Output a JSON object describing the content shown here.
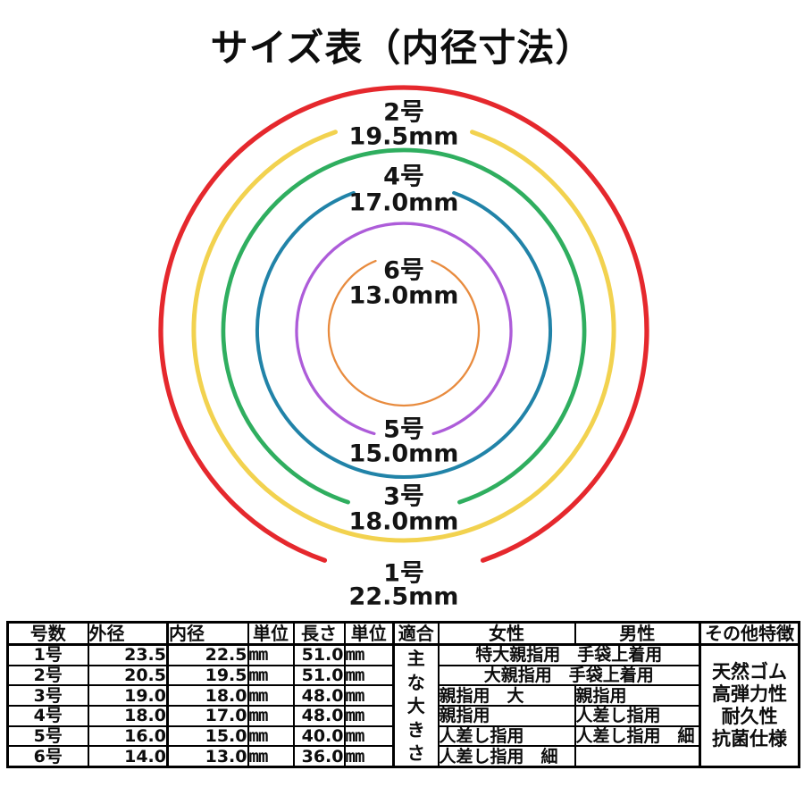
{
  "title": "サイズ表（内径寸法）",
  "diagram": {
    "rings": [
      {
        "name": "1号",
        "size_label": "22.5mm",
        "inner_diameter_mm": 22.5,
        "color": "#e5282d"
      },
      {
        "name": "2号",
        "size_label": "19.5mm",
        "inner_diameter_mm": 19.5,
        "color": "#f2d24f"
      },
      {
        "name": "3号",
        "size_label": "18.0mm",
        "inner_diameter_mm": 18.0,
        "color": "#2fae5f"
      },
      {
        "name": "4号",
        "size_label": "17.0mm",
        "inner_diameter_mm": 17.0,
        "color": "#2183a8"
      },
      {
        "name": "5号",
        "size_label": "15.0mm",
        "inner_diameter_mm": 15.0,
        "color": "#ad5cd9"
      },
      {
        "name": "6号",
        "size_label": "13.0mm",
        "inner_diameter_mm": 13.0,
        "color": "#e88b3e"
      }
    ]
  },
  "table": {
    "headers": [
      "号数",
      "外径",
      "内径",
      "単位",
      "長さ",
      "単位",
      "適合",
      "女性",
      "男性",
      "その他特徴"
    ],
    "fit_chars": [
      "主",
      "な",
      "大",
      "き",
      "さ"
    ],
    "features": [
      "天然ゴム",
      "高弾力性",
      "耐久性",
      "抗菌仕様"
    ],
    "rows": [
      {
        "size": "1号",
        "outer": "23.5",
        "inner": "22.5",
        "unit1": "mm",
        "length": "51.0",
        "unit2": "mm",
        "women_men": "特大親指用　手袋上着用"
      },
      {
        "size": "2号",
        "outer": "20.5",
        "inner": "19.5",
        "unit1": "mm",
        "length": "51.0",
        "unit2": "mm",
        "women_men": "大親指用　手袋上着用"
      },
      {
        "size": "3号",
        "outer": "19.0",
        "inner": "18.0",
        "unit1": "mm",
        "length": "48.0",
        "unit2": "mm",
        "women": "親指用　大",
        "men": "親指用"
      },
      {
        "size": "4号",
        "outer": "18.0",
        "inner": "17.0",
        "unit1": "mm",
        "length": "48.0",
        "unit2": "mm",
        "women": "親指用",
        "men": "人差し指用"
      },
      {
        "size": "5号",
        "outer": "16.0",
        "inner": "15.0",
        "unit1": "mm",
        "length": "40.0",
        "unit2": "mm",
        "women": "人差し指用",
        "men": "人差し指用　細"
      },
      {
        "size": "6号",
        "outer": "14.0",
        "inner": "13.0",
        "unit1": "mm",
        "length": "36.0",
        "unit2": "mm",
        "women": "人差し指用　細",
        "men": ""
      }
    ]
  }
}
